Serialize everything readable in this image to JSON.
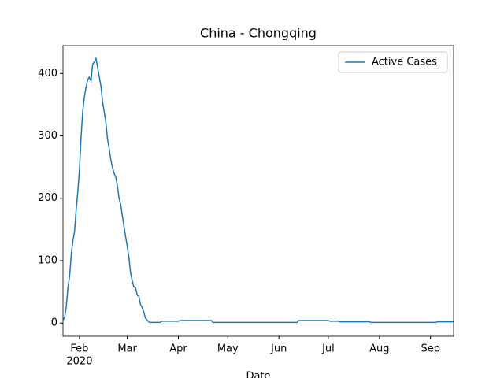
{
  "chart_data": {
    "type": "line",
    "title": "China - Chongqing",
    "xlabel": "Date",
    "x": [
      "2020-01-22",
      "2020-01-23",
      "2020-01-24",
      "2020-01-25",
      "2020-01-26",
      "2020-01-27",
      "2020-01-28",
      "2020-01-29",
      "2020-01-30",
      "2020-01-31",
      "2020-02-01",
      "2020-02-02",
      "2020-02-03",
      "2020-02-04",
      "2020-02-05",
      "2020-02-06",
      "2020-02-07",
      "2020-02-08",
      "2020-02-09",
      "2020-02-10",
      "2020-02-11",
      "2020-02-12",
      "2020-02-13",
      "2020-02-14",
      "2020-02-15",
      "2020-02-16",
      "2020-02-17",
      "2020-02-18",
      "2020-02-19",
      "2020-02-20",
      "2020-02-21",
      "2020-02-22",
      "2020-02-23",
      "2020-02-24",
      "2020-02-25",
      "2020-02-26",
      "2020-02-27",
      "2020-02-28",
      "2020-02-29",
      "2020-03-01",
      "2020-03-02",
      "2020-03-03",
      "2020-03-04",
      "2020-03-05",
      "2020-03-06",
      "2020-03-07",
      "2020-03-08",
      "2020-03-09",
      "2020-03-10",
      "2020-03-11",
      "2020-03-12",
      "2020-03-13",
      "2020-03-14",
      "2020-03-15",
      "2020-03-21",
      "2020-03-22",
      "2020-04-01",
      "2020-04-02",
      "2020-04-21",
      "2020-04-22",
      "2020-06-12",
      "2020-06-13",
      "2020-07-01",
      "2020-07-02",
      "2020-07-07",
      "2020-07-08",
      "2020-07-26",
      "2020-07-27",
      "2020-09-04",
      "2020-09-05",
      "2020-09-15"
    ],
    "series": [
      {
        "name": "Active Cases",
        "color": "#1f77b4",
        "values": [
          5,
          9,
          27,
          57,
          75,
          110,
          132,
          147,
          182,
          211,
          247,
          300,
          340,
          363,
          378,
          390,
          394,
          388,
          415,
          418,
          424,
          410,
          395,
          380,
          355,
          338,
          322,
          295,
          280,
          262,
          250,
          240,
          234,
          220,
          200,
          190,
          172,
          155,
          138,
          123,
          105,
          80,
          68,
          58,
          57,
          45,
          43,
          30,
          25,
          18,
          8,
          5,
          2,
          1,
          1,
          3,
          3,
          4,
          4,
          1,
          1,
          4,
          4,
          3,
          3,
          2,
          2,
          1,
          1,
          2,
          2
        ]
      }
    ],
    "xlim": [
      "2020-01-22",
      "2020-09-15"
    ],
    "xticks": [
      {
        "value": "2020-02-01",
        "label": "Feb"
      },
      {
        "value": "2020-03-01",
        "label": "Mar"
      },
      {
        "value": "2020-04-01",
        "label": "Apr"
      },
      {
        "value": "2020-05-01",
        "label": "May"
      },
      {
        "value": "2020-06-01",
        "label": "Jun"
      },
      {
        "value": "2020-07-01",
        "label": "Jul"
      },
      {
        "value": "2020-08-01",
        "label": "Aug"
      },
      {
        "value": "2020-09-01",
        "label": "Sep"
      }
    ],
    "xtick_year": "2020",
    "ylim": [
      -21.2,
      444.5
    ],
    "yticks": [
      0,
      100,
      200,
      300,
      400
    ],
    "legend": "upper right"
  }
}
